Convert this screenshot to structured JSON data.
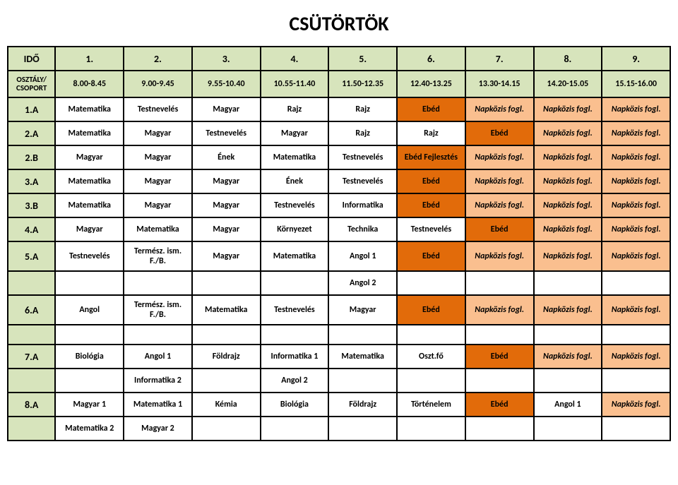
{
  "title": "CSÜTÖRTÖK",
  "header_periods": [
    "IDŐ",
    "1.",
    "2.",
    "3.",
    "4.",
    "5.",
    "6.",
    "7.",
    "8.",
    "9."
  ],
  "header_times_label": "OSZTÁLY/ CSOPORT",
  "header_times": [
    "8.00-8.45",
    "9.00-9.45",
    "9.55-10.40",
    "10.55-11.40",
    "11.50-12.35",
    "12.40-13.25",
    "13.30-14.15",
    "14.20-15.05",
    "15.15-16.00"
  ],
  "styles": {
    "header_bg": "#d7e4bc",
    "ebed_bg": "#e26b0a",
    "napkozis_bg": "#fabf8f",
    "border_color": "#000000",
    "title_fontsize": 28,
    "cell_fontsize": 12,
    "header_fontsize": 14
  },
  "rows": [
    {
      "label": "1.A",
      "cells": [
        "Matematika",
        "Testnevelés",
        "Magyar",
        "Rajz",
        "Rajz",
        {
          "t": "Ebéd",
          "c": "o"
        },
        {
          "t": "Napközis fogl.",
          "c": "n"
        },
        {
          "t": "Napközis fogl.",
          "c": "n"
        },
        {
          "t": "Napközis fogl.",
          "c": "n"
        }
      ]
    },
    {
      "label": "2.A",
      "cells": [
        "Matematika",
        "Magyar",
        "Testnevelés",
        "Magyar",
        "Rajz",
        "Rajz",
        {
          "t": "Ebéd",
          "c": "o"
        },
        {
          "t": "Napközis fogl.",
          "c": "n"
        },
        {
          "t": "Napközis fogl.",
          "c": "n"
        }
      ]
    },
    {
      "label": "2.B",
      "cells": [
        "Magyar",
        "Magyar",
        "Ének",
        "Matematika",
        "Testnevelés",
        {
          "t": "Ebéd Fejlesztés",
          "c": "o"
        },
        {
          "t": "Napközis fogl.",
          "c": "n"
        },
        {
          "t": "Napközis fogl.",
          "c": "n"
        },
        {
          "t": "Napközis fogl.",
          "c": "n"
        }
      ]
    },
    {
      "label": "3.A",
      "cells": [
        "Matematika",
        "Magyar",
        "Magyar",
        "Ének",
        "Testnevelés",
        {
          "t": "Ebéd",
          "c": "o"
        },
        {
          "t": "Napközis fogl.",
          "c": "n"
        },
        {
          "t": "Napközis fogl.",
          "c": "n"
        },
        {
          "t": "Napközis fogl.",
          "c": "n"
        }
      ]
    },
    {
      "label": "3.B",
      "cells": [
        "Matematika",
        "Magyar",
        "Magyar",
        "Testnevelés",
        "Informatika",
        {
          "t": "Ebéd",
          "c": "o"
        },
        {
          "t": "Napközis fogl.",
          "c": "n"
        },
        {
          "t": "Napközis fogl.",
          "c": "n"
        },
        {
          "t": "Napközis fogl.",
          "c": "n"
        }
      ]
    },
    {
      "label": "4.A",
      "cells": [
        "Magyar",
        "Matematika",
        "Magyar",
        "Környezet",
        "Technika",
        "Testnevelés",
        {
          "t": "Ebéd",
          "c": "o"
        },
        {
          "t": "Napközis fogl.",
          "c": "n"
        },
        {
          "t": "Napközis fogl.",
          "c": "n"
        }
      ]
    },
    {
      "label": "5.A",
      "cells": [
        "Testnevelés",
        "Termész. ism. F./B.",
        "Magyar",
        "Matematika",
        "Angol 1",
        {
          "t": "Ebéd",
          "c": "o"
        },
        {
          "t": "Napközis fogl.",
          "c": "n"
        },
        {
          "t": "Napközis fogl.",
          "c": "n"
        },
        {
          "t": "Napközis fogl.",
          "c": "n"
        }
      ]
    },
    {
      "label": "",
      "cells": [
        "",
        "",
        "",
        "",
        "Angol 2",
        "",
        "",
        "",
        ""
      ]
    },
    {
      "label": "6.A",
      "cells": [
        "Angol",
        "Termész. ism. F./B.",
        "Matematika",
        "Testnevelés",
        "Magyar",
        {
          "t": "Ebéd",
          "c": "o"
        },
        {
          "t": "Napközis fogl.",
          "c": "n"
        },
        {
          "t": "Napközis fogl.",
          "c": "n"
        },
        {
          "t": "Napközis fogl.",
          "c": "n"
        }
      ]
    },
    {
      "label": "",
      "cells": [
        "",
        "",
        "",
        "",
        "",
        "",
        "",
        "",
        ""
      ],
      "spacer": true
    },
    {
      "label": "7.A",
      "cells": [
        "Biológia",
        "Angol 1",
        "Földrajz",
        "Informatika 1",
        "Matematika",
        "Oszt.fő",
        {
          "t": "Ebéd",
          "c": "o"
        },
        {
          "t": "Napközis fogl.",
          "c": "n"
        },
        {
          "t": "Napközis fogl.",
          "c": "n"
        }
      ]
    },
    {
      "label": "",
      "cells": [
        "",
        "Informatika 2",
        "",
        "Angol 2",
        "",
        "",
        "",
        "",
        ""
      ]
    },
    {
      "label": "8.A",
      "cells": [
        "Magyar 1",
        "Matematika 1",
        "Kémia",
        "Biológia",
        "Földrajz",
        "Történelem",
        {
          "t": "Ebéd",
          "c": "o"
        },
        "Angol 1",
        {
          "t": "Napközis fogl.",
          "c": "n"
        }
      ]
    },
    {
      "label": "",
      "cells": [
        "Matematika 2",
        "Magyar 2",
        "",
        "",
        "",
        "",
        "",
        "",
        ""
      ]
    }
  ]
}
